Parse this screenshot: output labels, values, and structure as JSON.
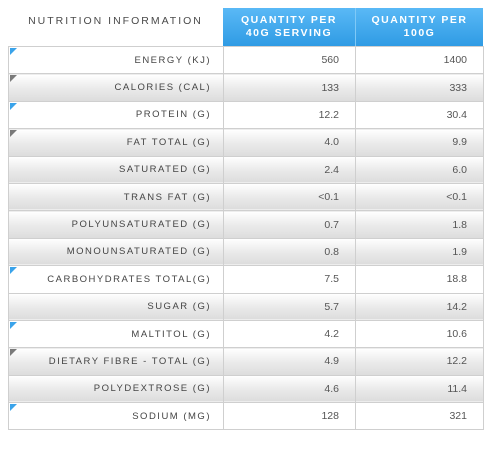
{
  "header": {
    "label": "NUTRITION INFORMATION",
    "col1_line1": "QUANTITY PER",
    "col1_line2": "40G SERVING",
    "col2_line1": "QUANTITY PER",
    "col2_line2": "100G"
  },
  "colors": {
    "header_blue": "#3aa7ee",
    "triangle_blue": "#3aa3ea",
    "triangle_grey": "#7a7a7a"
  },
  "rows": [
    {
      "label": "ENERGY (KJ)",
      "per_serving": "560",
      "per_100g": "1400"
    },
    {
      "label": "CALORIES (CAL)",
      "per_serving": "133",
      "per_100g": "333"
    },
    {
      "label": "PROTEIN (G)",
      "per_serving": "12.2",
      "per_100g": "30.4"
    },
    {
      "label": "FAT TOTAL (G)",
      "per_serving": "4.0",
      "per_100g": "9.9"
    },
    {
      "label": "SATURATED (G)",
      "per_serving": "2.4",
      "per_100g": "6.0"
    },
    {
      "label": "TRANS FAT (G)",
      "per_serving": "<0.1",
      "per_100g": "<0.1"
    },
    {
      "label": "POLYUNSATURATED (G)",
      "per_serving": "0.7",
      "per_100g": "1.8"
    },
    {
      "label": "MONOUNSATURATED (G)",
      "per_serving": "0.8",
      "per_100g": "1.9"
    },
    {
      "label": "CARBOHYDRATES TOTAL(G)",
      "per_serving": "7.5",
      "per_100g": "18.8"
    },
    {
      "label": "SUGAR (G)",
      "per_serving": "5.7",
      "per_100g": "14.2"
    },
    {
      "label": "MALTITOL (G)",
      "per_serving": "4.2",
      "per_100g": "10.6"
    },
    {
      "label": "DIETARY FIBRE - TOTAL (G)",
      "per_serving": "4.9",
      "per_100g": "12.2"
    },
    {
      "label": "POLYDEXTROSE (G)",
      "per_serving": "4.6",
      "per_100g": "11.4"
    },
    {
      "label": "SODIUM (MG)",
      "per_serving": "128",
      "per_100g": "321"
    }
  ]
}
